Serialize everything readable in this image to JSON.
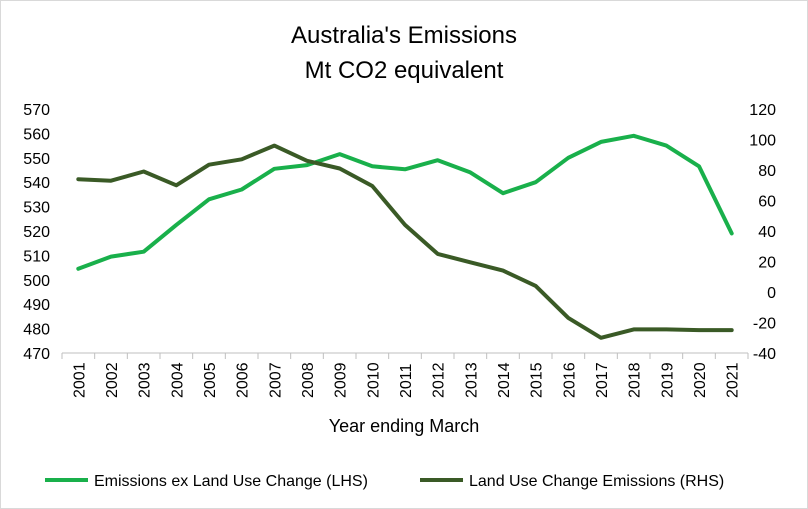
{
  "chart_data": {
    "type": "line",
    "title": "Australia's Emissions",
    "subtitle": "Mt CO2 equivalent",
    "xlabel": "Year ending March",
    "ylabel_left": "",
    "ylabel_right": "",
    "categories": [
      "2001",
      "2002",
      "2003",
      "2004",
      "2005",
      "2006",
      "2007",
      "2008",
      "2009",
      "2010",
      "2011",
      "2012",
      "2013",
      "2014",
      "2015",
      "2016",
      "2017",
      "2018",
      "2019",
      "2020",
      "2021"
    ],
    "y_left": {
      "min": 470,
      "max": 570,
      "step": 10,
      "ticks": [
        "470",
        "480",
        "490",
        "500",
        "510",
        "520",
        "530",
        "540",
        "550",
        "560",
        "570"
      ]
    },
    "y_right": {
      "min": -40,
      "max": 120,
      "step": 20,
      "ticks": [
        "-40",
        "-20",
        "0",
        "20",
        "40",
        "60",
        "80",
        "100",
        "120"
      ]
    },
    "series": [
      {
        "name": "Emissions ex Land Use Change (LHS)",
        "axis": "left",
        "color": "#19b04b",
        "values": [
          504.5,
          509.5,
          511.5,
          522.5,
          533,
          537,
          545.5,
          547,
          551.5,
          546.5,
          545.3,
          549,
          544,
          535.5,
          540,
          550,
          556.5,
          559,
          555,
          546.5,
          519
        ]
      },
      {
        "name": "Land Use Change Emissions (RHS)",
        "axis": "right",
        "color": "#3a5a26",
        "values": [
          74,
          73,
          79,
          70,
          83.5,
          87,
          96,
          86,
          81,
          69.5,
          44,
          25,
          19.5,
          14,
          4,
          -17,
          -30,
          -24.5,
          -24.5,
          -25,
          -25
        ]
      }
    ],
    "legend_position": "bottom",
    "grid": false
  }
}
